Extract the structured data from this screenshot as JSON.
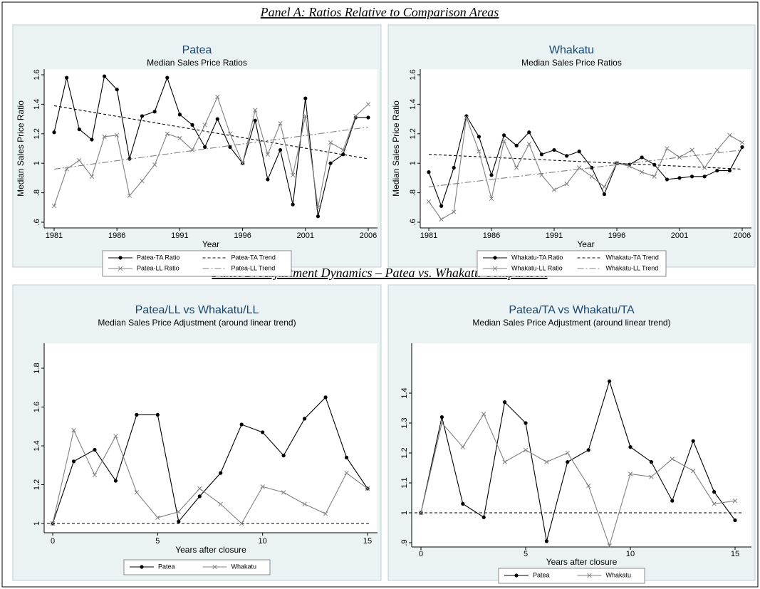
{
  "headings": [
    "Panel A: Ratios Relative to Comparison Areas",
    "Panel B: Adjustment Dynamics – Patea vs. Whakatu Comparison"
  ],
  "chart_data": [
    {
      "type": "line",
      "title": "Patea",
      "subtitle": "Median Sales Price Ratios",
      "x_label": "Year",
      "y_label": "Median Sales Price Ratio",
      "x": [
        1981,
        1982,
        1983,
        1984,
        1985,
        1986,
        1987,
        1988,
        1989,
        1990,
        1991,
        1992,
        1993,
        1994,
        1995,
        1996,
        1997,
        1998,
        1999,
        2000,
        2001,
        2002,
        2003,
        2004,
        2005,
        2006
      ],
      "xlim": [
        1981,
        2006
      ],
      "xticks": [
        1981,
        1986,
        1991,
        1996,
        2001,
        2006
      ],
      "ylim": [
        0.6,
        1.6
      ],
      "yticks": [
        {
          "value": 0.6,
          "label": ".6"
        },
        {
          "value": 0.8,
          "label": ".8"
        },
        1,
        1.2,
        1.4,
        1.6
      ],
      "legend_columns": 2,
      "series": [
        {
          "name": "Patea-TA Ratio",
          "color": "#000000",
          "marker": "circle",
          "values": [
            1.21,
            1.58,
            1.23,
            1.16,
            1.59,
            1.5,
            1.03,
            1.32,
            1.35,
            1.58,
            1.33,
            1.26,
            1.11,
            1.3,
            1.11,
            1.0,
            1.29,
            0.89,
            1.09,
            0.72,
            1.44,
            0.64,
            1.0,
            1.06,
            1.31,
            1.31
          ]
        },
        {
          "name": "Patea-TA Trend",
          "color": "#000000",
          "dash": "dash",
          "x": [
            1981,
            2006
          ],
          "values": [
            1.39,
            1.03
          ]
        },
        {
          "name": "Patea-LL Ratio",
          "color": "#808080",
          "marker": "x",
          "values": [
            0.71,
            0.96,
            1.02,
            0.91,
            1.18,
            1.19,
            0.78,
            0.88,
            0.99,
            1.2,
            1.17,
            1.09,
            1.26,
            1.45,
            1.2,
            1.0,
            1.36,
            1.06,
            1.27,
            0.92,
            1.32,
            0.7,
            1.14,
            1.09,
            1.32,
            1.4
          ]
        },
        {
          "name": "Patea-LL Trend",
          "color": "#808080",
          "dash": "dashdot",
          "x": [
            1981,
            2006
          ],
          "values": [
            0.96,
            1.245
          ]
        }
      ]
    },
    {
      "type": "line",
      "title": "Whakatu",
      "subtitle": "Median Sales Price Ratios",
      "x_label": "Year",
      "y_label": "Median Sales Price Ratio",
      "x": [
        1981,
        1982,
        1983,
        1984,
        1985,
        1986,
        1987,
        1988,
        1989,
        1990,
        1991,
        1992,
        1993,
        1994,
        1995,
        1996,
        1997,
        1998,
        1999,
        2000,
        2001,
        2002,
        2003,
        2004,
        2005,
        2006
      ],
      "xlim": [
        1981,
        2006
      ],
      "xticks": [
        1981,
        1986,
        1991,
        1996,
        2001,
        2006
      ],
      "ylim": [
        0.6,
        1.6
      ],
      "yticks": [
        {
          "value": 0.6,
          "label": ".6"
        },
        {
          "value": 0.8,
          "label": ".8"
        },
        1,
        1.2,
        1.4,
        1.6
      ],
      "legend_columns": 2,
      "series": [
        {
          "name": "Whakatu-TA Ratio",
          "color": "#000000",
          "marker": "circle",
          "values": [
            0.94,
            0.71,
            0.97,
            1.32,
            1.18,
            0.92,
            1.19,
            1.12,
            1.21,
            1.06,
            1.09,
            1.05,
            1.08,
            0.97,
            0.79,
            1.0,
            0.99,
            1.04,
            0.99,
            0.89,
            0.9,
            0.91,
            0.91,
            0.95,
            0.95,
            1.11
          ]
        },
        {
          "name": "Whakatu-TA Trend",
          "color": "#000000",
          "dash": "dash",
          "x": [
            1981,
            2006
          ],
          "values": [
            1.06,
            0.96
          ]
        },
        {
          "name": "Whakatu-LL Ratio",
          "color": "#808080",
          "marker": "x",
          "values": [
            0.74,
            0.62,
            0.67,
            1.31,
            1.08,
            0.76,
            1.15,
            0.97,
            1.13,
            0.92,
            0.82,
            0.86,
            0.97,
            0.91,
            0.84,
            1.0,
            0.98,
            0.94,
            0.91,
            1.1,
            1.04,
            1.09,
            0.97,
            1.09,
            1.19,
            1.14
          ]
        },
        {
          "name": "Whakatu-LL Trend",
          "color": "#808080",
          "dash": "dashdot",
          "x": [
            1981,
            2006
          ],
          "values": [
            0.84,
            1.09
          ]
        }
      ]
    },
    {
      "type": "line",
      "title": "Patea/LL vs Whakatu/LL",
      "subtitle": "Median Sales Price Adjustment (around linear trend)",
      "x_label": "Years after closure",
      "x": [
        0,
        1,
        2,
        3,
        4,
        5,
        6,
        7,
        8,
        9,
        10,
        11,
        12,
        13,
        14,
        15
      ],
      "xlim": [
        0,
        15
      ],
      "xticks": [
        0,
        5,
        10,
        15
      ],
      "ylim": [
        1,
        1.8
      ],
      "yticks": [
        1,
        1.2,
        1.4,
        1.6,
        1.8
      ],
      "hline": 1,
      "legend_columns": 2,
      "series": [
        {
          "name": "Patea",
          "color": "#000000",
          "marker": "circle",
          "values": [
            1.0,
            1.32,
            1.38,
            1.22,
            1.56,
            1.56,
            1.01,
            1.14,
            1.26,
            1.51,
            1.47,
            1.35,
            1.54,
            1.65,
            1.34,
            1.18
          ]
        },
        {
          "name": "Whakatu",
          "color": "#808080",
          "marker": "x",
          "values": [
            1.0,
            1.48,
            1.25,
            1.45,
            1.16,
            1.03,
            1.06,
            1.18,
            1.1,
            1.0,
            1.19,
            1.16,
            1.1,
            1.05,
            1.26,
            1.18
          ]
        }
      ]
    },
    {
      "type": "line",
      "title": "Patea/TA vs Whakatu/TA",
      "subtitle": "Median Sales Price Adjustment (around linear trend)",
      "x_label": "Years after closure",
      "x": [
        0,
        1,
        2,
        3,
        4,
        5,
        6,
        7,
        8,
        9,
        10,
        11,
        12,
        13,
        14,
        15
      ],
      "xlim": [
        0,
        15
      ],
      "xticks": [
        0,
        5,
        10,
        15
      ],
      "ylim": [
        0.9,
        1.45
      ],
      "yticks": [
        {
          "value": 0.9,
          "label": ".9"
        },
        1,
        1.1,
        1.2,
        1.3,
        1.4
      ],
      "hline": 1,
      "legend_columns": 2,
      "series": [
        {
          "name": "Patea",
          "color": "#000000",
          "marker": "circle",
          "values": [
            1.0,
            1.32,
            1.03,
            0.985,
            1.37,
            1.3,
            0.905,
            1.17,
            1.21,
            1.44,
            1.22,
            1.17,
            1.04,
            1.24,
            1.07,
            0.975
          ]
        },
        {
          "name": "Whakatu",
          "color": "#808080",
          "marker": "x",
          "values": [
            1.0,
            1.3,
            1.22,
            1.33,
            1.17,
            1.21,
            1.17,
            1.2,
            1.09,
            0.89,
            1.13,
            1.12,
            1.18,
            1.14,
            1.03,
            1.04
          ]
        }
      ]
    }
  ]
}
